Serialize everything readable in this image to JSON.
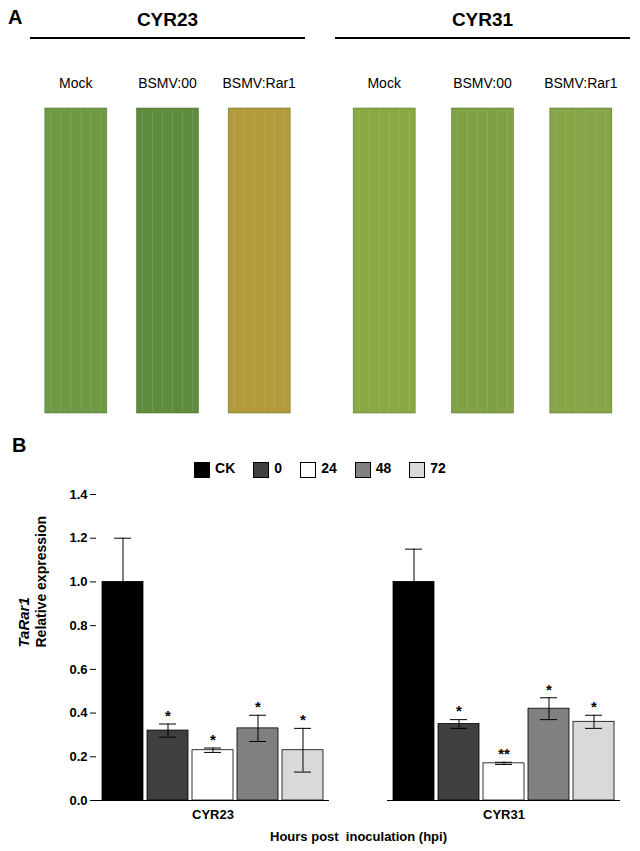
{
  "figure": {
    "panel_a": {
      "label": "A",
      "groups": [
        {
          "title": "CYR23",
          "leaves": [
            "Mock",
            "BSMV:00",
            "BSMV:Rar1"
          ]
        },
        {
          "title": "CYR31",
          "leaves": [
            "Mock",
            "BSMV:00",
            "BSMV:Rar1"
          ]
        }
      ]
    },
    "panel_b_label": "B"
  },
  "chart_data": {
    "type": "bar",
    "categories": [
      "CYR23",
      "CYR31"
    ],
    "series": [
      {
        "name": "CK",
        "color": "#000000",
        "values": [
          1.0,
          1.0
        ],
        "errors": [
          0.2,
          0.15
        ],
        "significance": [
          null,
          null
        ]
      },
      {
        "name": "0",
        "color": "#404040",
        "values": [
          0.32,
          0.35
        ],
        "errors": [
          0.03,
          0.02
        ],
        "significance": [
          "*",
          "*"
        ]
      },
      {
        "name": "24",
        "color": "#ffffff",
        "values": [
          0.23,
          0.17
        ],
        "errors": [
          0.01,
          0.005
        ],
        "significance": [
          "*",
          "**"
        ]
      },
      {
        "name": "48",
        "color": "#808080",
        "values": [
          0.33,
          0.42
        ],
        "errors": [
          0.06,
          0.05
        ],
        "significance": [
          "*",
          "*"
        ]
      },
      {
        "name": "72",
        "color": "#d9d9d9",
        "values": [
          0.23,
          0.36
        ],
        "errors": [
          0.1,
          0.03
        ],
        "significance": [
          "*",
          "*"
        ]
      }
    ],
    "y_label": [
      "TaRar1",
      "Relative expression"
    ],
    "x_label": "Hours post  inoculation (hpi)",
    "ylim": [
      0,
      1.4
    ],
    "yticks": [
      {
        "value": 0,
        "label": "0.0"
      },
      0.2,
      0.4,
      0.6,
      0.8,
      {
        "value": 1,
        "label": "1.0"
      },
      1.2,
      1.4
    ],
    "legend": "top",
    "grid": false
  }
}
